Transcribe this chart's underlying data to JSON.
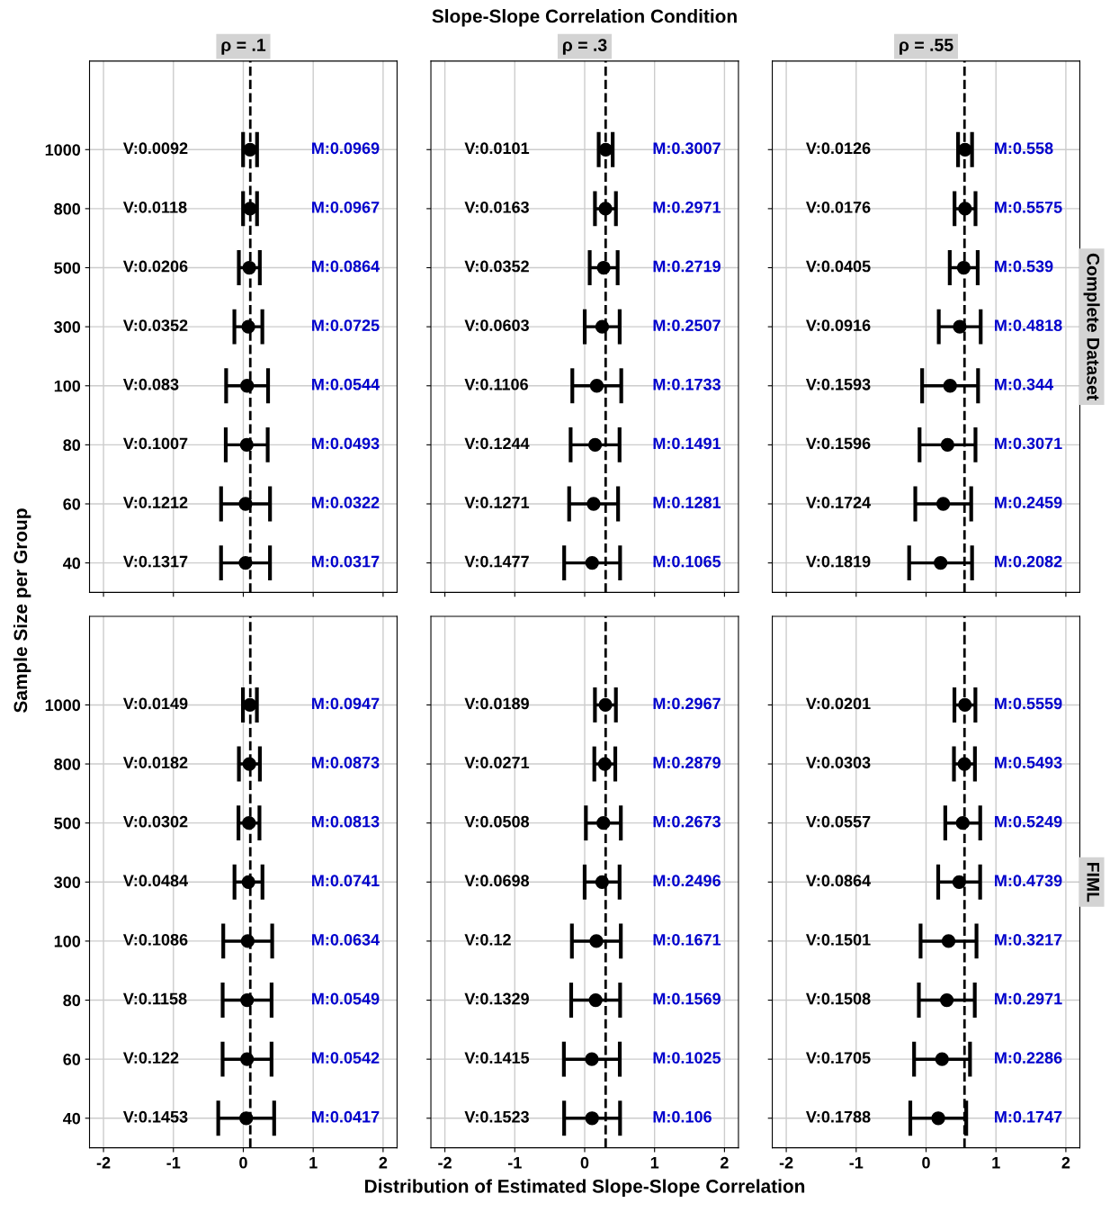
{
  "chart_data": [
    {
      "type": "scatter",
      "orientation": "horizontal",
      "subtitle": "ρ = .1",
      "ylabel": "Sample Size per Group",
      "categories": [
        "1000",
        "800",
        "500",
        "300",
        "100",
        "80",
        "60",
        "40"
      ],
      "series": [
        {
          "color": "#000000",
          "values": [
            0.0969,
            0.0967,
            0.0864,
            0.0725,
            0.0544,
            0.0493,
            0.0322,
            0.0317
          ],
          "errors": [
            0.1,
            0.1,
            0.15,
            0.2,
            0.3,
            0.3,
            0.35,
            0.35
          ]
        }
      ],
      "annotations": [
        "V:0.0092",
        "V:0.0118",
        "V:0.0206",
        "V:0.0352",
        "V:0.083",
        "V:0.1007",
        "V:0.1212",
        "V:0.1317",
        "M:0.0969",
        "M:0.0967",
        "M:0.0864",
        "M:0.0725",
        "M:0.0544",
        "M:0.0493",
        "M:0.0322",
        "M:0.0317"
      ],
      "ref_lines": [
        {
          "axis": "x",
          "value": 0.1,
          "line_style": "dashed"
        }
      ],
      "xlim": [
        -2.2,
        2.2
      ],
      "xticks": [
        -2,
        -1,
        0,
        1,
        2
      ],
      "grid": true,
      "marker": "circle",
      "tick_labels": "y"
    },
    {
      "type": "scatter",
      "orientation": "horizontal",
      "title": "Slope-Slope Correlation Condition",
      "subtitle": "ρ = .3",
      "categories": [
        "1000",
        "800",
        "500",
        "300",
        "100",
        "80",
        "60",
        "40"
      ],
      "series": [
        {
          "color": "#000000",
          "values": [
            0.3007,
            0.2971,
            0.2719,
            0.2507,
            0.1733,
            0.1491,
            0.1281,
            0.1065
          ],
          "errors": [
            0.1,
            0.15,
            0.2,
            0.25,
            0.35,
            0.35,
            0.35,
            0.4
          ]
        }
      ],
      "annotations": [
        "V:0.0101",
        "V:0.0163",
        "V:0.0352",
        "V:0.0603",
        "V:0.1106",
        "V:0.1244",
        "V:0.1271",
        "V:0.1477",
        "M:0.3007",
        "M:0.2971",
        "M:0.2719",
        "M:0.2507",
        "M:0.1733",
        "M:0.1491",
        "M:0.1281",
        "M:0.1065"
      ],
      "ref_lines": [
        {
          "axis": "x",
          "value": 0.3,
          "line_style": "dashed"
        }
      ],
      "xlim": [
        -2.2,
        2.2
      ],
      "xticks": [
        -2,
        -1,
        0,
        1,
        2
      ],
      "grid": true,
      "marker": "circle",
      "tick_labels": false
    },
    {
      "type": "scatter",
      "orientation": "horizontal",
      "subtitle": "ρ = .55",
      "y2label": "Complete Dataset",
      "categories": [
        "1000",
        "800",
        "500",
        "300",
        "100",
        "80",
        "60",
        "40"
      ],
      "series": [
        {
          "color": "#000000",
          "values": [
            0.558,
            0.5575,
            0.539,
            0.4818,
            0.344,
            0.3071,
            0.2459,
            0.2082
          ],
          "errors": [
            0.1,
            0.15,
            0.2,
            0.3,
            0.4,
            0.4,
            0.4,
            0.45
          ]
        }
      ],
      "annotations": [
        "V:0.0126",
        "V:0.0176",
        "V:0.0405",
        "V:0.0916",
        "V:0.1593",
        "V:0.1596",
        "V:0.1724",
        "V:0.1819",
        "M:0.558",
        "M:0.5575",
        "M:0.539",
        "M:0.4818",
        "M:0.344",
        "M:0.3071",
        "M:0.2459",
        "M:0.2082"
      ],
      "ref_lines": [
        {
          "axis": "x",
          "value": 0.55,
          "line_style": "dashed"
        }
      ],
      "xlim": [
        -2.2,
        2.2
      ],
      "xticks": [
        -2,
        -1,
        0,
        1,
        2
      ],
      "grid": true,
      "marker": "circle",
      "tick_labels": false
    },
    {
      "type": "scatter",
      "orientation": "horizontal",
      "categories": [
        "1000",
        "800",
        "500",
        "300",
        "100",
        "80",
        "60",
        "40"
      ],
      "series": [
        {
          "color": "#000000",
          "values": [
            0.0947,
            0.0873,
            0.0813,
            0.0741,
            0.0634,
            0.0549,
            0.0542,
            0.0417
          ],
          "errors": [
            0.1,
            0.15,
            0.15,
            0.2,
            0.35,
            0.35,
            0.35,
            0.4
          ]
        }
      ],
      "annotations": [
        "V:0.0149",
        "V:0.0182",
        "V:0.0302",
        "V:0.0484",
        "V:0.1086",
        "V:0.1158",
        "V:0.122",
        "V:0.1453",
        "M:0.0947",
        "M:0.0873",
        "M:0.0813",
        "M:0.0741",
        "M:0.0634",
        "M:0.0549",
        "M:0.0542",
        "M:0.0417"
      ],
      "ref_lines": [
        {
          "axis": "x",
          "value": 0.1,
          "line_style": "dashed"
        }
      ],
      "xlim": [
        -2.2,
        2.2
      ],
      "xticks": [
        -2,
        -1,
        0,
        1,
        2
      ],
      "grid": true,
      "marker": "circle"
    },
    {
      "type": "scatter",
      "orientation": "horizontal",
      "xlabel": "Distribution of Estimated Slope-Slope Correlation",
      "categories": [
        "1000",
        "800",
        "500",
        "300",
        "100",
        "80",
        "60",
        "40"
      ],
      "series": [
        {
          "color": "#000000",
          "values": [
            0.2967,
            0.2879,
            0.2673,
            0.2496,
            0.1671,
            0.1569,
            0.1025,
            0.106
          ],
          "errors": [
            0.15,
            0.15,
            0.25,
            0.25,
            0.35,
            0.35,
            0.4,
            0.4
          ]
        }
      ],
      "annotations": [
        "V:0.0189",
        "V:0.0271",
        "V:0.0508",
        "V:0.0698",
        "V:0.12",
        "V:0.1329",
        "V:0.1415",
        "V:0.1523",
        "M:0.2967",
        "M:0.2879",
        "M:0.2673",
        "M:0.2496",
        "M:0.1671",
        "M:0.1569",
        "M:0.1025",
        "M:0.106"
      ],
      "ref_lines": [
        {
          "axis": "x",
          "value": 0.3,
          "line_style": "dashed"
        }
      ],
      "xlim": [
        -2.2,
        2.2
      ],
      "xticks": [
        -2,
        -1,
        0,
        1,
        2
      ],
      "grid": true,
      "marker": "circle",
      "tick_labels": "x"
    },
    {
      "type": "scatter",
      "orientation": "horizontal",
      "y2label": "FIML",
      "categories": [
        "1000",
        "800",
        "500",
        "300",
        "100",
        "80",
        "60",
        "40"
      ],
      "series": [
        {
          "color": "#000000",
          "values": [
            0.5559,
            0.5493,
            0.5249,
            0.4739,
            0.3217,
            0.2971,
            0.2286,
            0.1747
          ],
          "errors": [
            0.15,
            0.15,
            0.25,
            0.3,
            0.4,
            0.4,
            0.4,
            0.4
          ]
        }
      ],
      "annotations": [
        "V:0.0201",
        "V:0.0303",
        "V:0.0557",
        "V:0.0864",
        "V:0.1501",
        "V:0.1508",
        "V:0.1705",
        "V:0.1788",
        "M:0.5559",
        "M:0.5493",
        "M:0.5249",
        "M:0.4739",
        "M:0.3217",
        "M:0.2971",
        "M:0.2286",
        "M:0.1747"
      ],
      "ref_lines": [
        {
          "axis": "x",
          "value": 0.55,
          "line_style": "dashed"
        }
      ],
      "xlim": [
        -2.2,
        2.2
      ],
      "xticks": [
        -2,
        -1,
        0,
        1,
        2
      ],
      "grid": true,
      "marker": "circle",
      "tick_labels": "x"
    }
  ]
}
